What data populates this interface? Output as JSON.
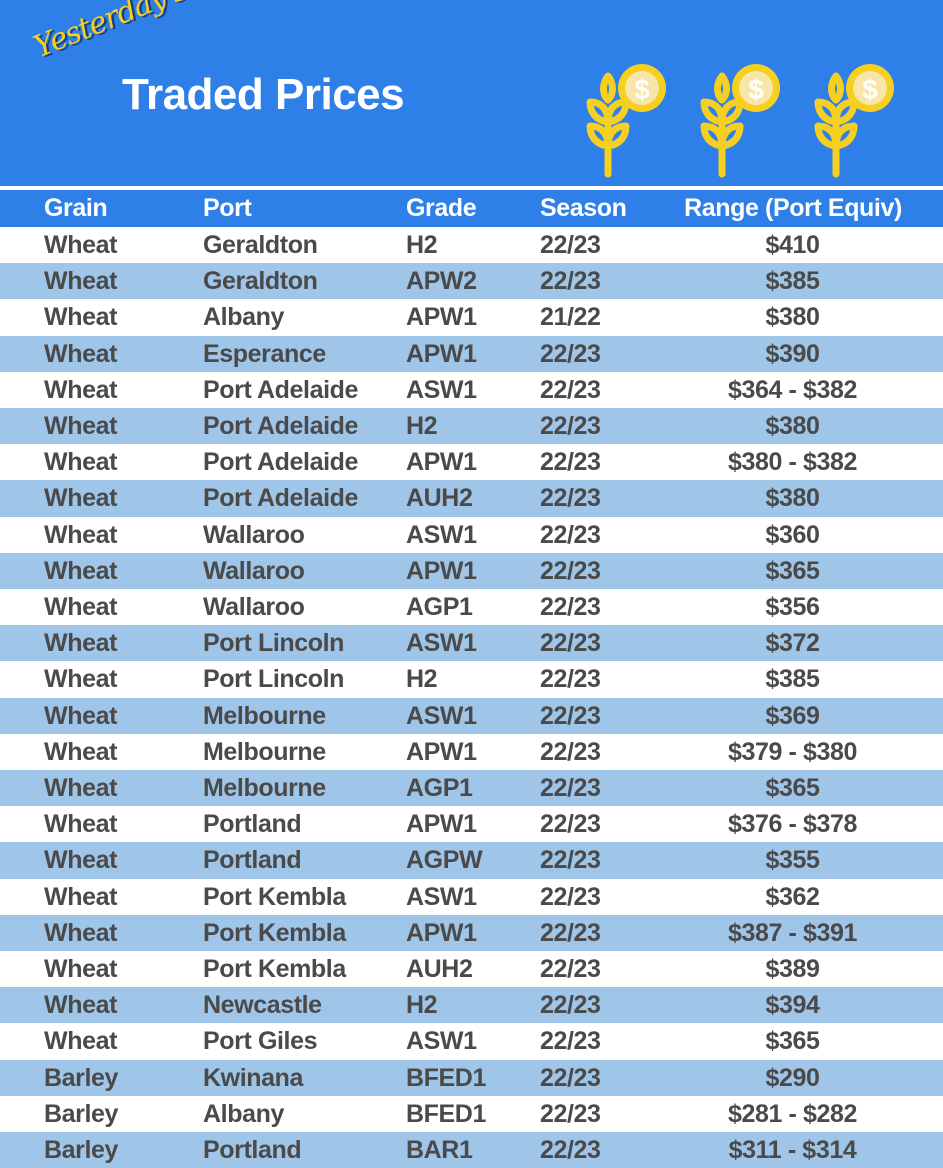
{
  "header": {
    "script_title": "Yesterday's",
    "title": "Traded Prices",
    "icon": "wheat-dollar-coin-icon",
    "icon_color": "#f5d020",
    "background": "#2f7fe9"
  },
  "table": {
    "columns": [
      "Grain",
      "Port",
      "Grade",
      "Season",
      "Range (Port Equiv)"
    ],
    "alt_row_color": "#9fc5e8",
    "rows": [
      [
        "Wheat",
        "Geraldton",
        "H2",
        "22/23",
        "$410"
      ],
      [
        "Wheat",
        "Geraldton",
        "APW2",
        "22/23",
        "$385"
      ],
      [
        "Wheat",
        "Albany",
        "APW1",
        "21/22",
        "$380"
      ],
      [
        "Wheat",
        "Esperance",
        "APW1",
        "22/23",
        "$390"
      ],
      [
        "Wheat",
        "Port Adelaide",
        "ASW1",
        "22/23",
        "$364 - $382"
      ],
      [
        "Wheat",
        "Port Adelaide",
        "H2",
        "22/23",
        "$380"
      ],
      [
        "Wheat",
        "Port Adelaide",
        "APW1",
        "22/23",
        "$380 - $382"
      ],
      [
        "Wheat",
        "Port Adelaide",
        "AUH2",
        "22/23",
        "$380"
      ],
      [
        "Wheat",
        "Wallaroo",
        "ASW1",
        "22/23",
        "$360"
      ],
      [
        "Wheat",
        "Wallaroo",
        "APW1",
        "22/23",
        "$365"
      ],
      [
        "Wheat",
        "Wallaroo",
        "AGP1",
        "22/23",
        "$356"
      ],
      [
        "Wheat",
        "Port Lincoln",
        "ASW1",
        "22/23",
        "$372"
      ],
      [
        "Wheat",
        "Port Lincoln",
        "H2",
        "22/23",
        "$385"
      ],
      [
        "Wheat",
        "Melbourne",
        "ASW1",
        "22/23",
        "$369"
      ],
      [
        "Wheat",
        "Melbourne",
        "APW1",
        "22/23",
        "$379 - $380"
      ],
      [
        "Wheat",
        "Melbourne",
        "AGP1",
        "22/23",
        "$365"
      ],
      [
        "Wheat",
        "Portland",
        "APW1",
        "22/23",
        "$376 - $378"
      ],
      [
        "Wheat",
        "Portland",
        "AGPW",
        "22/23",
        "$355"
      ],
      [
        "Wheat",
        "Port Kembla",
        "ASW1",
        "22/23",
        "$362"
      ],
      [
        "Wheat",
        "Port Kembla",
        "APW1",
        "22/23",
        "$387 - $391"
      ],
      [
        "Wheat",
        "Port Kembla",
        "AUH2",
        "22/23",
        "$389"
      ],
      [
        "Wheat",
        "Newcastle",
        "H2",
        "22/23",
        "$394"
      ],
      [
        "Wheat",
        "Port Giles",
        "ASW1",
        "22/23",
        "$365"
      ],
      [
        "Barley",
        "Kwinana",
        "BFED1",
        "22/23",
        "$290"
      ],
      [
        "Barley",
        "Albany",
        "BFED1",
        "22/23",
        "$281 - $282"
      ],
      [
        "Barley",
        "Portland",
        "BAR1",
        "22/23",
        "$311 - $314"
      ]
    ]
  }
}
